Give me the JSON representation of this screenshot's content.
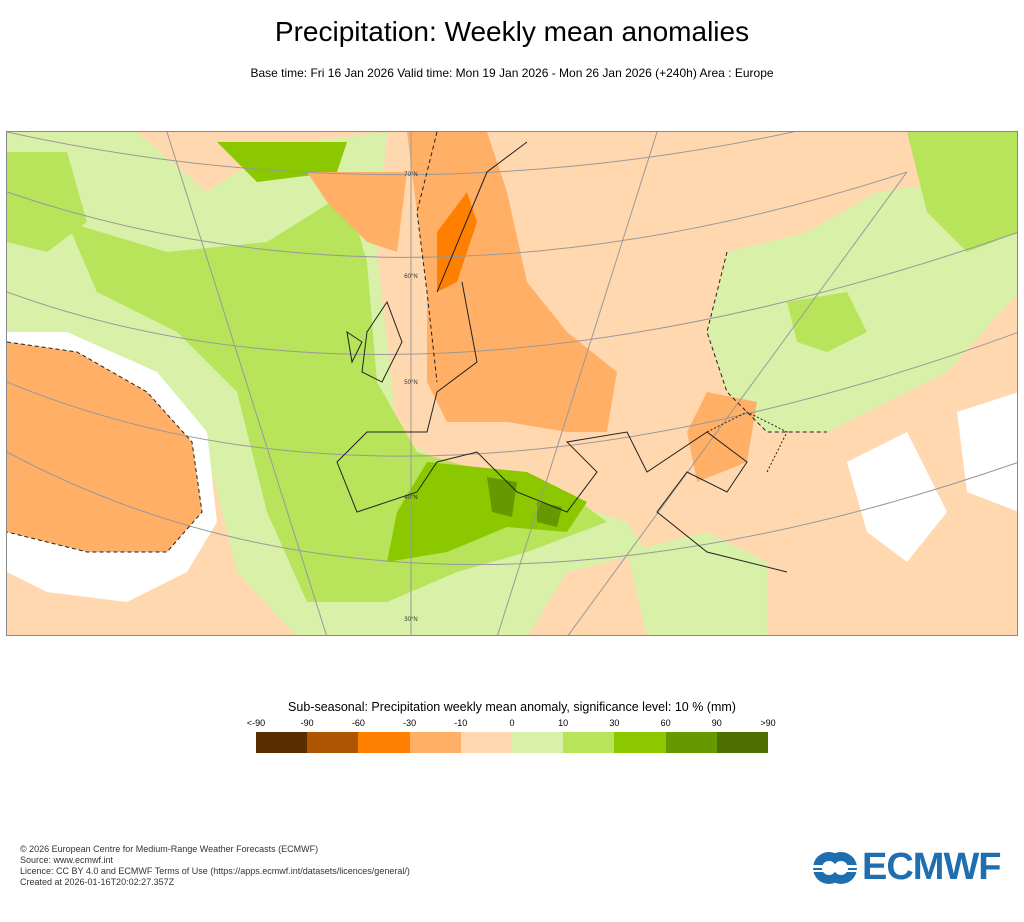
{
  "header": {
    "title": "Precipitation: Weekly mean anomalies",
    "subtitle": "Base time: Fri 16 Jan 2026 Valid time: Mon 19 Jan 2026 - Mon 26 Jan 2026 (+240h) Area : Europe"
  },
  "map": {
    "region": "Europe",
    "latitude_labels": [
      "70°N",
      "60°N",
      "50°N",
      "40°N",
      "30°N"
    ]
  },
  "legend": {
    "title": "Sub-seasonal: Precipitation weekly mean anomaly, significance level: 10 % (mm)",
    "ticks": [
      "<-90",
      "-90",
      "-60",
      "-30",
      "-10",
      "0",
      "10",
      "30",
      "60",
      "90",
      ">90"
    ],
    "colors": [
      "#5a2d00",
      "#ad5500",
      "#ff8000",
      "#ffb066",
      "#ffd8b0",
      "#d8f0a8",
      "#b7e45a",
      "#8cc800",
      "#669900",
      "#4d6e00"
    ]
  },
  "footer": {
    "lines": [
      "© 2026 European Centre for Medium-Range Weather Forecasts (ECMWF)",
      "Source: www.ecmwf.int",
      "Licence: CC BY 4.0 and ECMWF Terms of Use (https://apps.ecmwf.int/datasets/licences/general/)",
      "Created at 2026-01-16T20:02:27.357Z"
    ]
  },
  "logo": {
    "text": "ECMWF",
    "color": "#1f6fb0"
  }
}
